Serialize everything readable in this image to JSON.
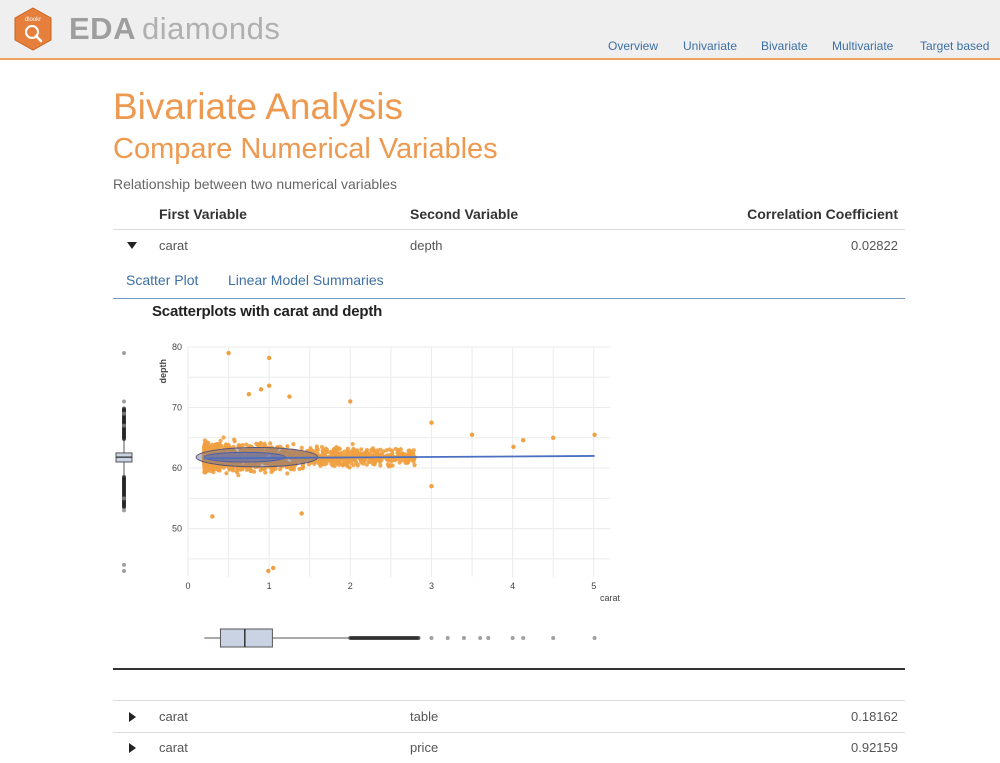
{
  "header": {
    "logo_text": "dlookr",
    "brand_bold": "EDA",
    "brand_light": "diamonds",
    "nav": [
      "Overview",
      "Univariate",
      "Bivariate",
      "Multivariate",
      "Target based"
    ]
  },
  "page": {
    "title": "Bivariate Analysis",
    "section_title": "Compare Numerical Variables",
    "description": "Relationship between two numerical variables"
  },
  "table": {
    "headers": [
      "First Variable",
      "Second Variable",
      "Correlation Coefficient"
    ],
    "rows": [
      {
        "first": "carat",
        "second": "depth",
        "coef": "0.02822",
        "expanded": true
      },
      {
        "first": "carat",
        "second": "table",
        "coef": "0.18162",
        "expanded": false
      },
      {
        "first": "carat",
        "second": "price",
        "coef": "0.92159",
        "expanded": false
      }
    ]
  },
  "tabs": [
    "Scatter Plot",
    "Linear Model Summaries"
  ],
  "colors": {
    "accent": "#ee9950",
    "link": "#3d6fa5",
    "points": "#f0a040",
    "fit_line": "#4a6fc0",
    "box_fill": "#c9d3e3"
  },
  "chart_data": {
    "type": "scatter",
    "title": "Scatterplots with carat and depth",
    "xlabel": "carat",
    "ylabel": "depth",
    "xlim": [
      0,
      5.2
    ],
    "ylim": [
      42,
      80
    ],
    "xticks": [
      0,
      1,
      2,
      3,
      4,
      5
    ],
    "yticks": [
      50,
      60,
      70,
      80
    ],
    "grid": true,
    "fit_line": {
      "x": [
        0.2,
        5.01
      ],
      "y": [
        61.6,
        62.0
      ]
    },
    "outlier_points": [
      {
        "x": 0.5,
        "y": 79.0
      },
      {
        "x": 1.0,
        "y": 78.2
      },
      {
        "x": 1.0,
        "y": 73.6
      },
      {
        "x": 0.9,
        "y": 73.0
      },
      {
        "x": 0.75,
        "y": 72.2
      },
      {
        "x": 1.25,
        "y": 71.8
      },
      {
        "x": 2.0,
        "y": 71.0
      },
      {
        "x": 3.0,
        "y": 67.5
      },
      {
        "x": 3.5,
        "y": 65.5
      },
      {
        "x": 4.13,
        "y": 64.6
      },
      {
        "x": 4.5,
        "y": 65.0
      },
      {
        "x": 4.01,
        "y": 63.5
      },
      {
        "x": 5.01,
        "y": 65.5
      },
      {
        "x": 0.99,
        "y": 43.0
      },
      {
        "x": 1.05,
        "y": 43.5
      },
      {
        "x": 3.0,
        "y": 57.0
      },
      {
        "x": 1.4,
        "y": 52.5
      },
      {
        "x": 0.3,
        "y": 52.0
      }
    ],
    "x_boxplot": {
      "q1": 0.4,
      "median": 0.7,
      "q3": 1.04,
      "whisker_low": 0.2,
      "whisker_high": 2.0,
      "outliers": [
        3.0,
        3.2,
        3.4,
        3.6,
        3.7,
        4.0,
        4.13,
        4.5,
        5.01
      ]
    },
    "y_boxplot": {
      "q1": 61.0,
      "median": 61.8,
      "q3": 62.5,
      "whisker_low": 58.8,
      "whisker_high": 64.7,
      "outliers": [
        43.0,
        44.0,
        53.0,
        55.0,
        67.0,
        69.0,
        71.0,
        79.0
      ]
    }
  }
}
